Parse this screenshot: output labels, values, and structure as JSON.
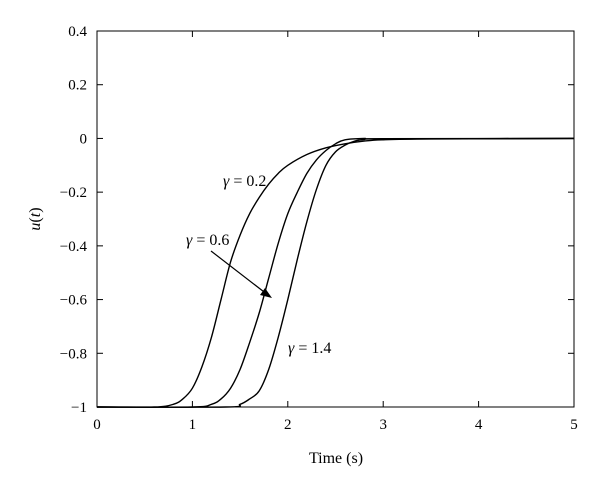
{
  "chart_data": {
    "type": "line",
    "title": "",
    "xlabel": "Time (s)",
    "ylabel": "u(t)",
    "ylabel_symbol": "u",
    "ylabel_arg": "t",
    "xlim": [
      0,
      5
    ],
    "ylim": [
      -1,
      0.4
    ],
    "x_ticks": [
      0,
      1,
      2,
      3,
      4,
      5
    ],
    "x_tick_labels": [
      "0",
      "1",
      "2",
      "3",
      "4",
      "5"
    ],
    "y_ticks": [
      0.4,
      0.2,
      0,
      -0.2,
      -0.4,
      -0.6,
      -0.8,
      -1
    ],
    "y_tick_labels": [
      "0.4",
      "0.2",
      "0",
      "−0.2",
      "−0.4",
      "−0.6",
      "−0.8",
      "−1"
    ],
    "grid": false,
    "legend": "none",
    "line_color": "#000000",
    "series": [
      {
        "label_symbol": "γ",
        "label_value": " = 0.2",
        "points": [
          [
            0,
            -1
          ],
          [
            0.6,
            -1
          ],
          [
            0.8,
            -0.99
          ],
          [
            0.9,
            -0.97
          ],
          [
            1.0,
            -0.93
          ],
          [
            1.1,
            -0.85
          ],
          [
            1.2,
            -0.74
          ],
          [
            1.3,
            -0.6
          ],
          [
            1.4,
            -0.46
          ],
          [
            1.5,
            -0.36
          ],
          [
            1.6,
            -0.28
          ],
          [
            1.7,
            -0.22
          ],
          [
            1.8,
            -0.17
          ],
          [
            1.9,
            -0.13
          ],
          [
            2.0,
            -0.1
          ],
          [
            2.2,
            -0.06
          ],
          [
            2.4,
            -0.035
          ],
          [
            2.6,
            -0.02
          ],
          [
            2.8,
            -0.01
          ],
          [
            3.0,
            -0.005
          ],
          [
            3.5,
            -0.002
          ],
          [
            5.0,
            0
          ]
        ]
      },
      {
        "label_symbol": "γ",
        "label_value": " = 0.6",
        "points": [
          [
            0,
            -1
          ],
          [
            1.0,
            -1
          ],
          [
            1.2,
            -0.99
          ],
          [
            1.3,
            -0.97
          ],
          [
            1.4,
            -0.93
          ],
          [
            1.5,
            -0.86
          ],
          [
            1.6,
            -0.76
          ],
          [
            1.7,
            -0.65
          ],
          [
            1.8,
            -0.52
          ],
          [
            1.9,
            -0.39
          ],
          [
            2.0,
            -0.28
          ],
          [
            2.1,
            -0.2
          ],
          [
            2.2,
            -0.13
          ],
          [
            2.3,
            -0.08
          ],
          [
            2.4,
            -0.045
          ],
          [
            2.5,
            -0.02
          ],
          [
            2.6,
            -0.005
          ],
          [
            2.8,
            0.0
          ],
          [
            3.0,
            -0.002
          ],
          [
            5.0,
            0
          ]
        ]
      },
      {
        "label_symbol": "γ",
        "label_value": " = 1.4",
        "points": [
          [
            0,
            -1
          ],
          [
            1.35,
            -1
          ],
          [
            1.5,
            -0.99
          ],
          [
            1.6,
            -0.97
          ],
          [
            1.7,
            -0.94
          ],
          [
            1.8,
            -0.86
          ],
          [
            1.9,
            -0.74
          ],
          [
            2.0,
            -0.6
          ],
          [
            2.1,
            -0.45
          ],
          [
            2.2,
            -0.31
          ],
          [
            2.3,
            -0.19
          ],
          [
            2.4,
            -0.1
          ],
          [
            2.5,
            -0.05
          ],
          [
            2.6,
            -0.025
          ],
          [
            2.7,
            -0.01
          ],
          [
            2.8,
            -0.004
          ],
          [
            3.0,
            -0.001
          ],
          [
            5.0,
            0
          ]
        ]
      }
    ]
  }
}
